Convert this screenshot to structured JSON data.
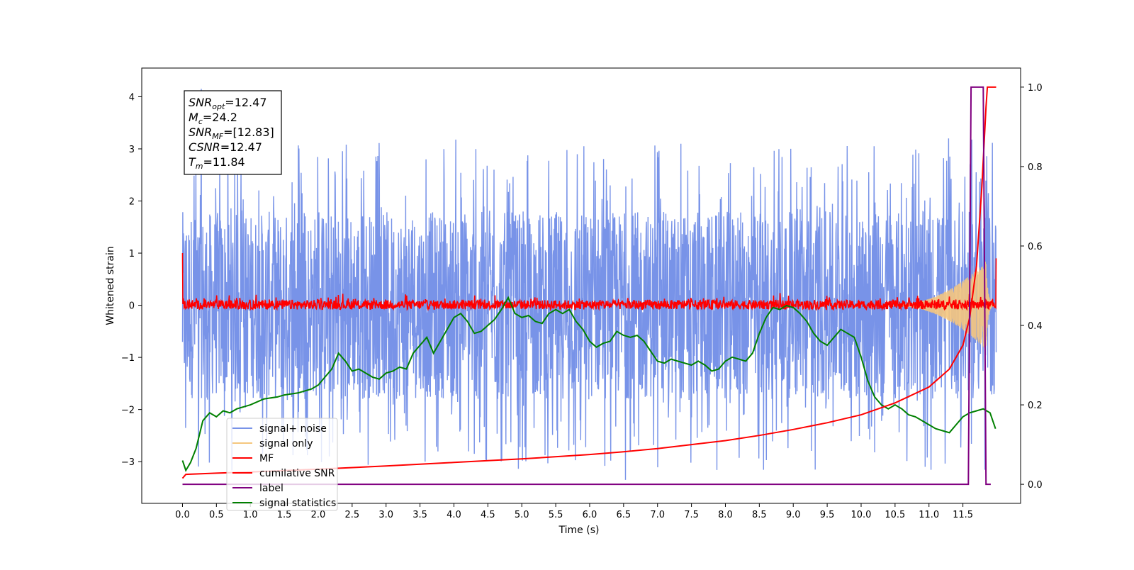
{
  "chart_data": {
    "type": "line",
    "xlabel": "Time (s)",
    "ylabel_left": "Whitened strain",
    "ylabel_right": "",
    "xlim": [
      -0.6,
      12.35
    ],
    "ylim_left": [
      -3.8,
      4.55
    ],
    "ylim_right": [
      -0.048,
      1.048
    ],
    "grid": false,
    "legend_position": "lower-left",
    "x_ticks": [
      "0.0",
      "0.5",
      "1.0",
      "1.5",
      "2.0",
      "2.5",
      "3.0",
      "3.5",
      "4.0",
      "4.5",
      "5.0",
      "5.5",
      "6.0",
      "6.5",
      "7.0",
      "7.5",
      "8.0",
      "8.5",
      "9.0",
      "9.5",
      "10.0",
      "10.5",
      "11.0",
      "11.5"
    ],
    "x_tick_values": [
      0.0,
      0.5,
      1.0,
      1.5,
      2.0,
      2.5,
      3.0,
      3.5,
      4.0,
      4.5,
      5.0,
      5.5,
      6.0,
      6.5,
      7.0,
      7.5,
      8.0,
      8.5,
      9.0,
      9.5,
      10.0,
      10.5,
      11.0,
      11.5
    ],
    "y_ticks_left": [
      "4",
      "3",
      "2",
      "1",
      "0",
      "−1",
      "−2",
      "−3"
    ],
    "y_tick_values_left": [
      4,
      3,
      2,
      1,
      0,
      -1,
      -2,
      -3
    ],
    "y_ticks_right": [
      "1.0",
      "0.8",
      "0.6",
      "0.4",
      "0.2",
      "0.0"
    ],
    "y_tick_values_right": [
      1.0,
      0.8,
      0.6,
      0.4,
      0.2,
      0.0
    ],
    "annotations": [
      {
        "main": "SNR",
        "sub": "opt",
        "value": "=12.47"
      },
      {
        "main": "M",
        "sub": "c",
        "value": "=24.2"
      },
      {
        "main": "SNR",
        "sub": "MF",
        "value": "=[12.83]"
      },
      {
        "main": "CSNR",
        "sub": "",
        "value": "=12.47"
      },
      {
        "main": "T",
        "sub": "m",
        "value": "=11.84"
      }
    ],
    "series": [
      {
        "name": "signal+ noise",
        "color": "#7893e8",
        "axis": "left",
        "kind": "noise",
        "approx_range": [
          -3.3,
          4.2
        ],
        "x_range": [
          0.0,
          11.99
        ]
      },
      {
        "name": "signal only",
        "color": "#f5c77e",
        "axis": "left",
        "kind": "chirp",
        "x_range": [
          0.0,
          11.99
        ],
        "max_amplitude": 0.85,
        "merger_time": 11.84
      },
      {
        "name": "MF",
        "color": "#ff0000",
        "axis": "left",
        "kind": "noise",
        "approx_range": [
          -0.15,
          0.25
        ],
        "start_value": 1.0,
        "end_value": 0.9
      },
      {
        "name": "cumilative SNR",
        "color": "#ff0000",
        "axis": "right",
        "x": [
          0.0,
          0.05,
          0.5,
          1.0,
          2.0,
          3.0,
          4.0,
          5.0,
          6.0,
          6.5,
          7.0,
          7.5,
          8.0,
          8.5,
          9.0,
          9.5,
          10.0,
          10.5,
          11.0,
          11.3,
          11.5,
          11.6,
          11.7,
          11.78,
          11.84,
          11.86,
          11.99
        ],
        "y": [
          0.015,
          0.025,
          0.028,
          0.031,
          0.038,
          0.046,
          0.055,
          0.064,
          0.075,
          0.082,
          0.09,
          0.1,
          0.11,
          0.123,
          0.138,
          0.155,
          0.175,
          0.205,
          0.245,
          0.29,
          0.35,
          0.42,
          0.55,
          0.75,
          0.95,
          1.0,
          1.0
        ]
      },
      {
        "name": "label",
        "color": "#800080",
        "axis": "right",
        "x": [
          0.0,
          11.58,
          11.62,
          11.8,
          11.84,
          11.91
        ],
        "y": [
          0.0,
          0.0,
          1.0,
          1.0,
          0.0,
          0.0
        ]
      },
      {
        "name": "signal statistics",
        "color": "#008000",
        "axis": "right",
        "x": [
          0.0,
          0.05,
          0.12,
          0.2,
          0.3,
          0.4,
          0.5,
          0.6,
          0.7,
          0.8,
          1.0,
          1.2,
          1.4,
          1.5,
          1.7,
          1.9,
          2.0,
          2.1,
          2.2,
          2.3,
          2.4,
          2.5,
          2.6,
          2.7,
          2.8,
          2.9,
          3.0,
          3.1,
          3.2,
          3.3,
          3.4,
          3.5,
          3.6,
          3.7,
          3.8,
          3.9,
          4.0,
          4.1,
          4.2,
          4.3,
          4.4,
          4.5,
          4.6,
          4.7,
          4.8,
          4.9,
          5.0,
          5.1,
          5.2,
          5.3,
          5.4,
          5.5,
          5.6,
          5.7,
          5.8,
          5.9,
          6.0,
          6.1,
          6.2,
          6.3,
          6.4,
          6.5,
          6.6,
          6.7,
          6.8,
          6.9,
          7.0,
          7.1,
          7.2,
          7.3,
          7.4,
          7.5,
          7.6,
          7.7,
          7.8,
          7.9,
          8.0,
          8.1,
          8.2,
          8.3,
          8.4,
          8.5,
          8.6,
          8.7,
          8.8,
          8.9,
          9.0,
          9.1,
          9.2,
          9.3,
          9.4,
          9.5,
          9.6,
          9.7,
          9.8,
          9.9,
          10.0,
          10.1,
          10.2,
          10.3,
          10.4,
          10.5,
          10.6,
          10.7,
          10.8,
          10.9,
          11.0,
          11.1,
          11.2,
          11.3,
          11.4,
          11.5,
          11.6,
          11.7,
          11.8,
          11.9,
          11.98
        ],
        "y": [
          0.06,
          0.035,
          0.055,
          0.09,
          0.16,
          0.18,
          0.17,
          0.185,
          0.18,
          0.19,
          0.2,
          0.215,
          0.22,
          0.225,
          0.23,
          0.24,
          0.25,
          0.27,
          0.29,
          0.33,
          0.31,
          0.285,
          0.29,
          0.28,
          0.27,
          0.265,
          0.28,
          0.285,
          0.295,
          0.29,
          0.33,
          0.35,
          0.37,
          0.33,
          0.36,
          0.39,
          0.42,
          0.43,
          0.41,
          0.38,
          0.385,
          0.4,
          0.415,
          0.44,
          0.47,
          0.43,
          0.42,
          0.425,
          0.41,
          0.405,
          0.43,
          0.44,
          0.43,
          0.44,
          0.41,
          0.39,
          0.36,
          0.345,
          0.355,
          0.36,
          0.385,
          0.375,
          0.37,
          0.375,
          0.36,
          0.335,
          0.31,
          0.305,
          0.315,
          0.31,
          0.305,
          0.3,
          0.31,
          0.3,
          0.285,
          0.29,
          0.31,
          0.32,
          0.315,
          0.31,
          0.33,
          0.38,
          0.42,
          0.445,
          0.44,
          0.45,
          0.445,
          0.43,
          0.41,
          0.38,
          0.36,
          0.35,
          0.37,
          0.39,
          0.38,
          0.37,
          0.32,
          0.26,
          0.22,
          0.2,
          0.19,
          0.2,
          0.19,
          0.175,
          0.17,
          0.16,
          0.15,
          0.14,
          0.135,
          0.13,
          0.15,
          0.17,
          0.18,
          0.185,
          0.19,
          0.18,
          0.14
        ]
      }
    ]
  }
}
